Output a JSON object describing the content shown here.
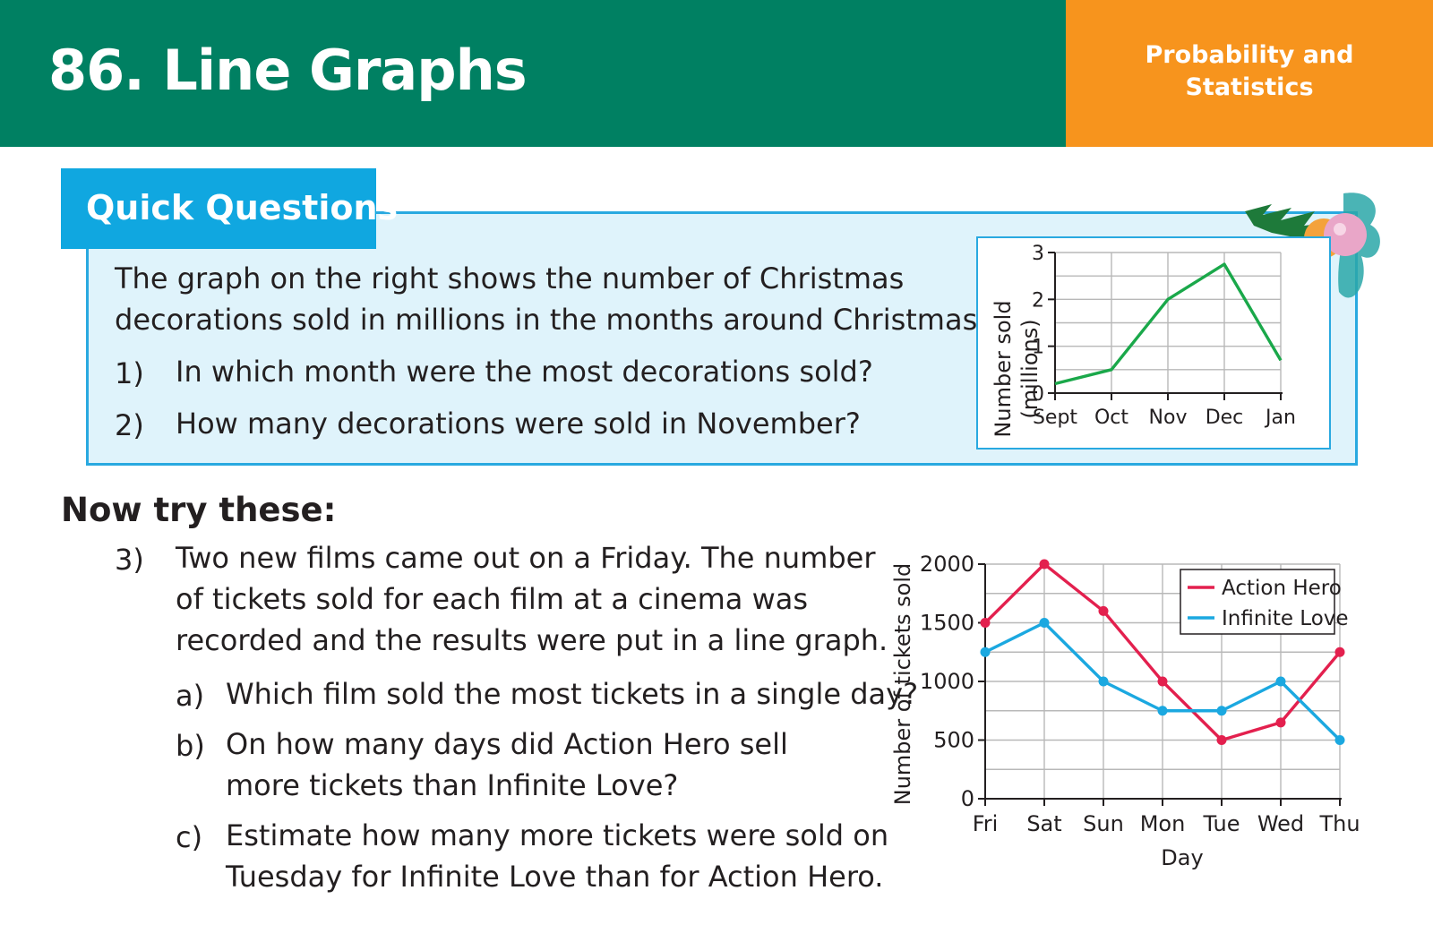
{
  "header": {
    "title": "86. Line Graphs",
    "topic_line1": "Probability and",
    "topic_line2": "Statistics"
  },
  "quick_questions": {
    "heading": "Quick Questions",
    "intro_line1": "The graph on the right shows the number of Christmas",
    "intro_line2": "decorations sold in millions in the months around Christmas.",
    "questions": [
      {
        "num": "1)",
        "text": "In which month were the most decorations sold?"
      },
      {
        "num": "2)",
        "text": "How many decorations were sold in November?"
      }
    ]
  },
  "now_try": {
    "heading": "Now try these:",
    "q3": {
      "num": "3)",
      "lines": [
        "Two new films came out on a Friday.  The number",
        "of tickets sold for each film at a cinema was",
        "recorded and the results were put in a line graph."
      ],
      "parts": [
        {
          "label": "a)",
          "lines": [
            "Which film sold the most tickets in a single day?"
          ]
        },
        {
          "label": "b)",
          "lines": [
            "On how many days did Action Hero sell",
            "more tickets than Infinite Love?"
          ]
        },
        {
          "label": "c)",
          "lines": [
            "Estimate how many more tickets were sold on",
            "Tuesday for Infinite Love than for Action Hero."
          ]
        }
      ]
    }
  },
  "chart_data": [
    {
      "type": "line",
      "title": "",
      "ylabel_line1": "Number sold",
      "ylabel_line2": "(millions)",
      "xlabel": "",
      "categories": [
        "Sept",
        "Oct",
        "Nov",
        "Dec",
        "Jan"
      ],
      "ylim": [
        0,
        3
      ],
      "yticks": [
        0,
        1,
        2,
        3
      ],
      "grid": true,
      "series": [
        {
          "values": [
            0.2,
            0.5,
            2.0,
            2.75,
            0.7
          ],
          "color": "#1aa84a"
        }
      ]
    },
    {
      "type": "line",
      "title": "",
      "ylabel": "Number of tickets sold",
      "xlabel": "Day",
      "categories": [
        "Fri",
        "Sat",
        "Sun",
        "Mon",
        "Tue",
        "Wed",
        "Thu"
      ],
      "ylim": [
        0,
        2000
      ],
      "yticks": [
        0,
        500,
        1000,
        1500,
        2000
      ],
      "grid": true,
      "legend": "top-right",
      "series": [
        {
          "name": "Action Hero",
          "values": [
            1500,
            2000,
            1600,
            1000,
            500,
            650,
            1250
          ],
          "color": "#e3204e"
        },
        {
          "name": "Infinite Love",
          "values": [
            1250,
            1500,
            1000,
            750,
            750,
            1000,
            500
          ],
          "color": "#1ba8e0"
        }
      ]
    }
  ]
}
